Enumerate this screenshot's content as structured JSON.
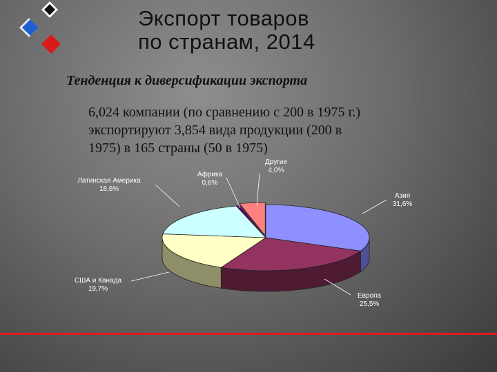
{
  "slide": {
    "title_line1": "Экспорт товаров",
    "title_line2": "по странам, 2014",
    "subtitle": "Тенденция к диверсификации экспорта",
    "body_line1": "6,024 компании (по сравнению с 200 в 1975 г.)",
    "body_line2": "экспортируют 3,854 вида продукции (200 в",
    "body_line3": "1975) в 165 страны (50 в 1975)"
  },
  "colors": {
    "accent_red": "#e11b1b",
    "logo_blue": "#1f5fd1",
    "logo_red": "#d81b1b"
  },
  "chart_data": {
    "type": "pie",
    "title": "",
    "slices": [
      {
        "name": "Азия",
        "value": 31.6,
        "label": "31,6%",
        "color": "#8f8fff",
        "side": "#505097"
      },
      {
        "name": "Европа",
        "value": 25.5,
        "label": "25,5%",
        "color": "#933360",
        "side": "#4e1b33"
      },
      {
        "name": "США и Канада",
        "value": 19.7,
        "label": "19,7%",
        "color": "#ffffc6",
        "side": "#8e8e68"
      },
      {
        "name": "Латинская Америка",
        "value": 18.6,
        "label": "18,6%",
        "color": "#ccffff",
        "side": "#7a9c9c"
      },
      {
        "name": "Африка",
        "value": 0.6,
        "label": "0,6%",
        "color": "#660066",
        "side": "#360036"
      },
      {
        "name": "Другие",
        "value": 4.0,
        "label": "4,0%",
        "color": "#ff8080",
        "side": "#9a4848"
      }
    ]
  }
}
